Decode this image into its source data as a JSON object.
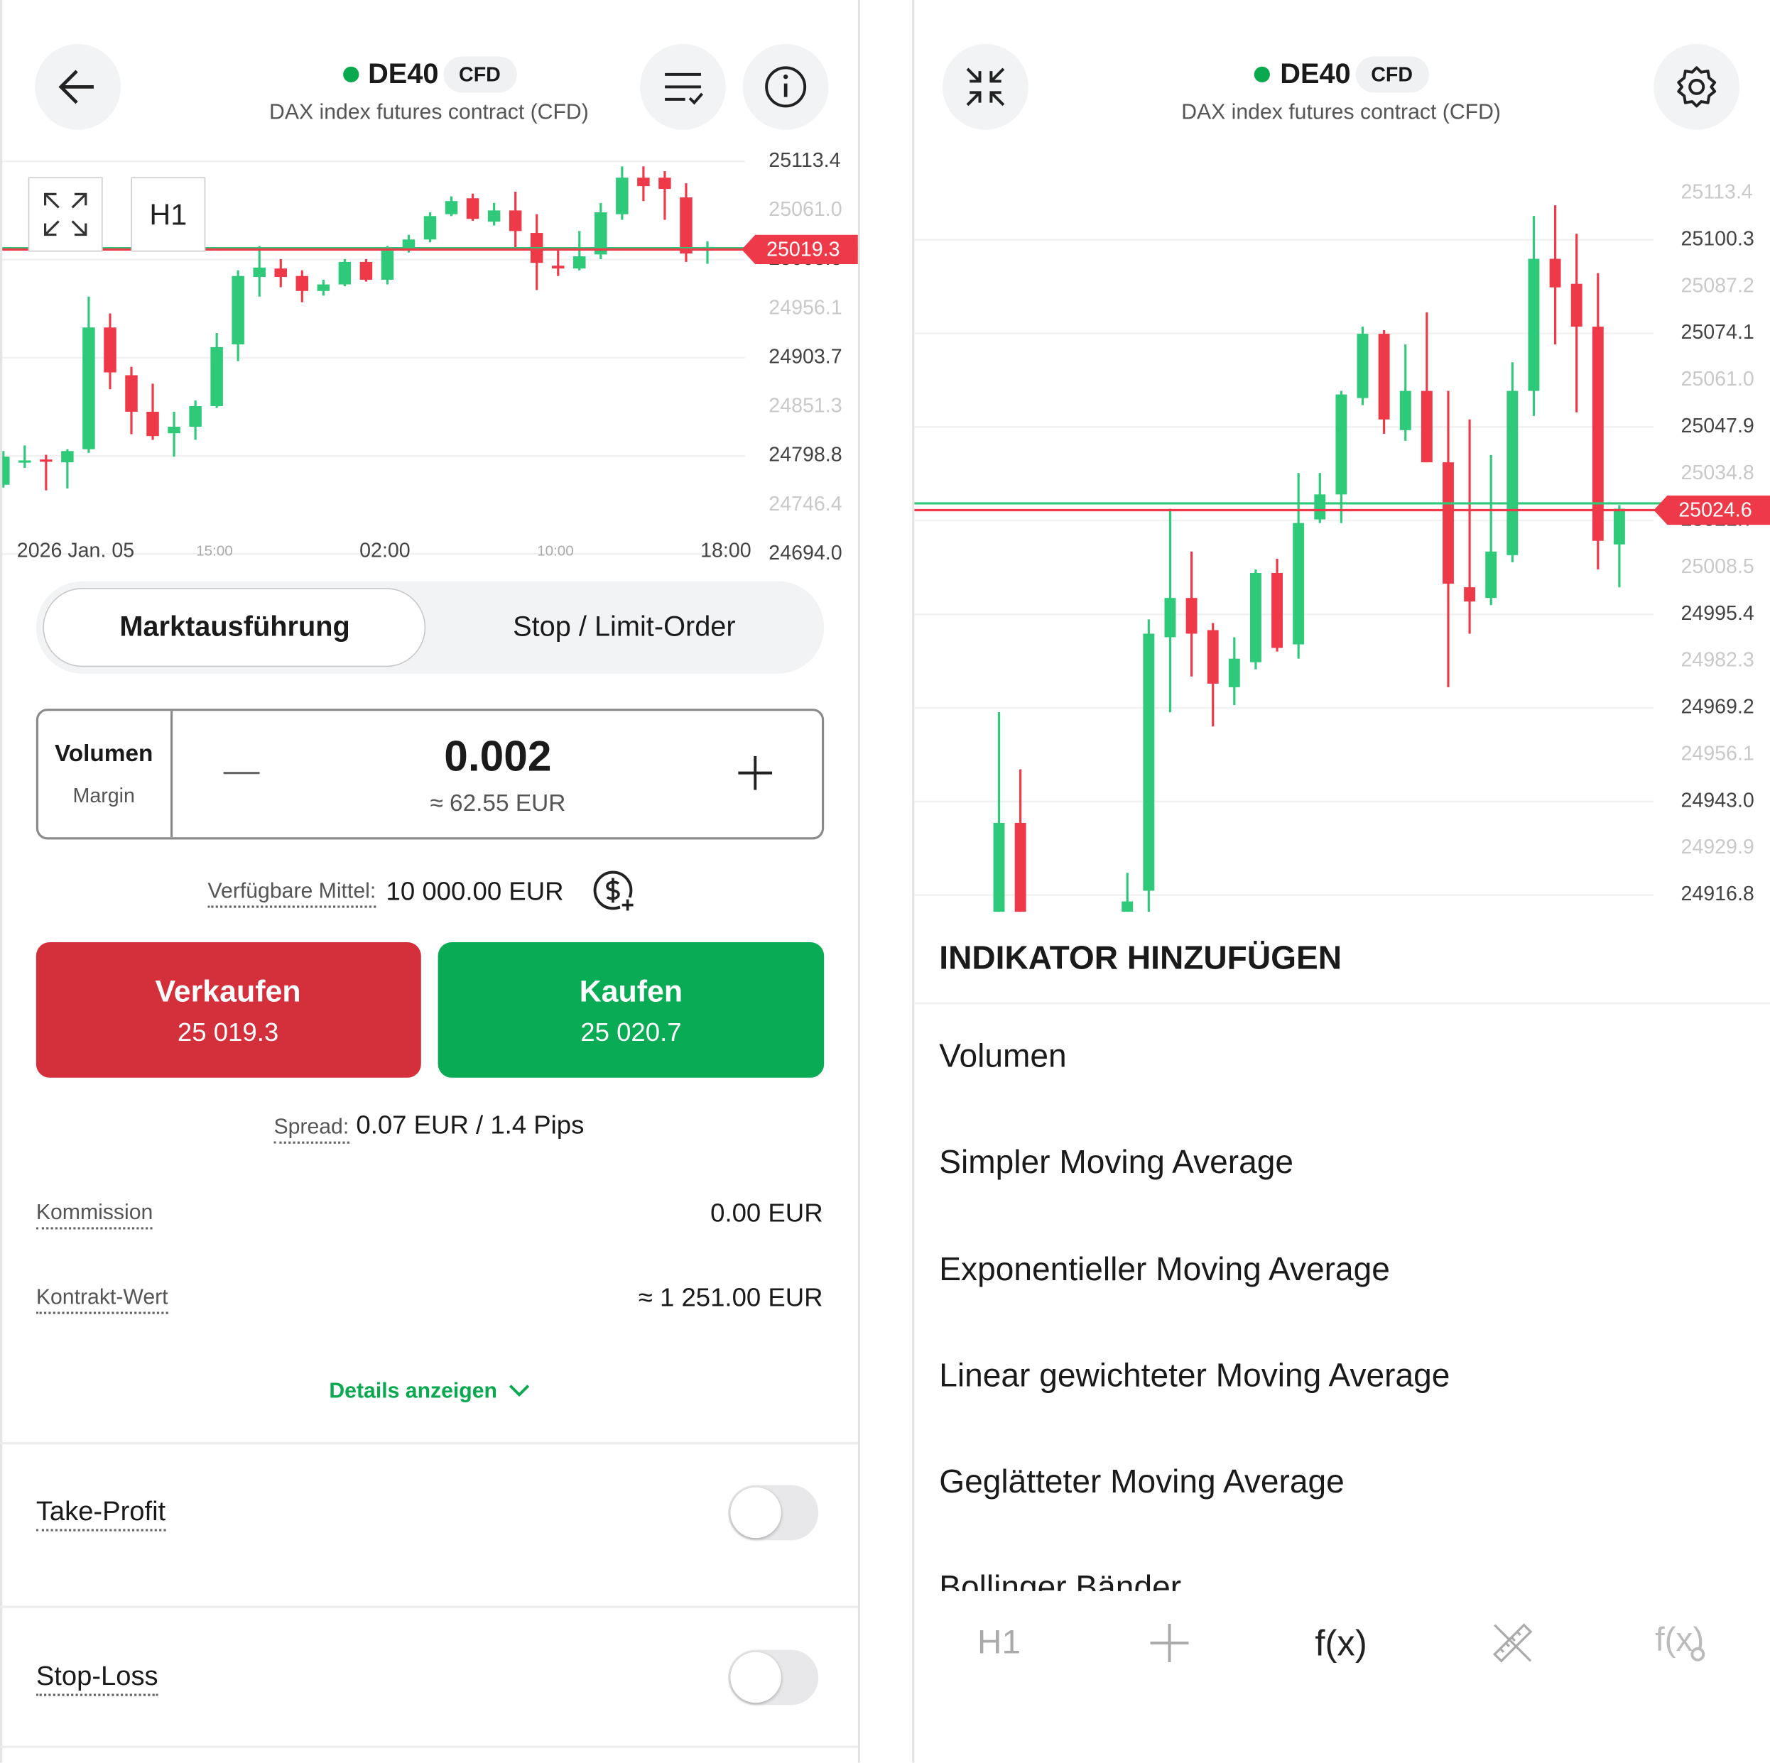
{
  "left_panel": {
    "header": {
      "symbol": "DE40",
      "badge": "CFD",
      "subtitle": "DAX index futures contract (CFD)"
    },
    "chart": {
      "type": "candlestick",
      "timeframe": "H1",
      "up_color": "#2fc97a",
      "down_color": "#ee3a48",
      "ylim": [
        24677.1,
        25129.1
      ],
      "yticks": [
        25113.4,
        {
          "value": 25061,
          "label": "25061.0"
        },
        25008.5,
        24956.1,
        24903.7,
        24851.3,
        24798.8,
        24746.4,
        {
          "value": 24694,
          "label": "24694.0"
        }
      ],
      "x_labels": [
        "2026 Jan. 05",
        "15:00",
        "02:00",
        "10:00",
        "18:00"
      ],
      "bid": 25019.3,
      "ask": 25020.7,
      "candles": [
        {
          "open": 24768,
          "high": 24804,
          "low": 24765,
          "close": 24798
        },
        {
          "open": 24792,
          "high": 24810,
          "low": 24786,
          "close": 24794
        },
        {
          "open": 24795,
          "high": 24800,
          "low": 24762,
          "close": 24793
        },
        {
          "open": 24792,
          "high": 24806,
          "low": 24764,
          "close": 24804
        },
        {
          "open": 24806,
          "high": 24969,
          "low": 24802,
          "close": 24936
        },
        {
          "open": 24936,
          "high": 24951,
          "low": 24870,
          "close": 24888
        },
        {
          "open": 24885,
          "high": 24894,
          "low": 24822,
          "close": 24846
        },
        {
          "open": 24846,
          "high": 24876,
          "low": 24816,
          "close": 24820
        },
        {
          "open": 24823,
          "high": 24846,
          "low": 24798,
          "close": 24830
        },
        {
          "open": 24830,
          "high": 24858,
          "low": 24816,
          "close": 24852
        },
        {
          "open": 24852,
          "high": 24930,
          "low": 24850,
          "close": 24915
        },
        {
          "open": 24918,
          "high": 24997,
          "low": 24900,
          "close": 24991
        },
        {
          "open": 24990,
          "high": 25023,
          "low": 24969,
          "close": 25000
        },
        {
          "open": 24999,
          "high": 25009,
          "low": 24979,
          "close": 24990
        },
        {
          "open": 24991,
          "high": 24997,
          "low": 24963,
          "close": 24975
        },
        {
          "open": 24975,
          "high": 24987,
          "low": 24970,
          "close": 24982
        },
        {
          "open": 24982,
          "high": 25009,
          "low": 24980,
          "close": 25006
        },
        {
          "open": 25006,
          "high": 25009,
          "low": 24985,
          "close": 24987
        },
        {
          "open": 24987,
          "high": 25023,
          "low": 24982,
          "close": 25018
        },
        {
          "open": 25021,
          "high": 25035,
          "low": 25016,
          "close": 25030
        },
        {
          "open": 25030,
          "high": 25059,
          "low": 25027,
          "close": 25055
        },
        {
          "open": 25057,
          "high": 25076,
          "low": 25055,
          "close": 25071
        },
        {
          "open": 25074,
          "high": 25079,
          "low": 25050,
          "close": 25052
        },
        {
          "open": 25049,
          "high": 25069,
          "low": 25045,
          "close": 25061
        },
        {
          "open": 25061,
          "high": 25081,
          "low": 25021,
          "close": 25039
        },
        {
          "open": 25037,
          "high": 25057,
          "low": 24976,
          "close": 25005
        },
        {
          "open": 25002,
          "high": 25018,
          "low": 24991,
          "close": 24999
        },
        {
          "open": 24999,
          "high": 25039,
          "low": 24997,
          "close": 25012
        },
        {
          "open": 25014,
          "high": 25069,
          "low": 25009,
          "close": 25059
        },
        {
          "open": 25057,
          "high": 25108,
          "low": 25051,
          "close": 25096
        },
        {
          "open": 25096,
          "high": 25108,
          "low": 25071,
          "close": 25087
        },
        {
          "open": 25096,
          "high": 25103,
          "low": 25051,
          "close": 25084
        },
        {
          "open": 25075,
          "high": 25090,
          "low": 25006,
          "close": 25015
        },
        {
          "open": 25018,
          "high": 25028,
          "low": 25004,
          "close": 25022
        }
      ]
    },
    "order_tabs": [
      "Marktausführung",
      "Stop / Limit-Order"
    ],
    "volume": {
      "label": "Volumen",
      "sublabel": "Margin",
      "value": "0.002",
      "margin": "≈ 62.55 EUR"
    },
    "available": {
      "label": "Verfügbare Mittel:",
      "value": "10 000.00 EUR"
    },
    "sell": {
      "label": "Verkaufen",
      "price": "25 019.3"
    },
    "buy": {
      "label": "Kaufen",
      "price": "25 020.7"
    },
    "spread": {
      "label": "Spread:",
      "value": "0.07 EUR / 1.4 Pips"
    },
    "rows": [
      {
        "label": "Kommission",
        "value": "0.00 EUR"
      },
      {
        "label": "Kontrakt-Wert",
        "value": "≈ 1 251.00 EUR"
      }
    ],
    "details_link": "Details anzeigen",
    "toggles": [
      "Take-Profit",
      "Stop-Loss"
    ]
  },
  "right_panel": {
    "header": {
      "symbol": "DE40",
      "badge": "CFD",
      "subtitle": "DAX index futures contract (CFD)"
    },
    "chart": {
      "type": "candlestick",
      "up_color": "#2fc97a",
      "down_color": "#ee3a48",
      "ylim": [
        24912.1,
        25126.4
      ],
      "yticks": [
        25113.4,
        25100.3,
        25087.2,
        25074.1,
        {
          "value": 25061,
          "label": "25061.0"
        },
        25047.9,
        25034.8,
        25021.7,
        25008.5,
        24995.4,
        24982.3,
        24969.2,
        24956.1,
        {
          "value": 24943,
          "label": "24943.0"
        },
        24929.9,
        24916.8
      ],
      "bid": 25024.6,
      "ask": 25026.5,
      "candles": [
        {
          "open": 24908,
          "high": 24968,
          "low": 24905,
          "close": 24937
        },
        {
          "open": 24937,
          "high": 24952,
          "low": 24905,
          "close": 24907
        },
        null,
        null,
        null,
        null,
        {
          "open": 24912,
          "high": 24923,
          "low": 24905,
          "close": 24915
        },
        {
          "open": 24918,
          "high": 24994,
          "low": 24910,
          "close": 24990
        },
        {
          "open": 24989,
          "high": 25025,
          "low": 24968,
          "close": 25000
        },
        {
          "open": 25000,
          "high": 25013,
          "low": 24978,
          "close": 24990
        },
        {
          "open": 24991,
          "high": 24993,
          "low": 24964,
          "close": 24976
        },
        {
          "open": 24975,
          "high": 24989,
          "low": 24970,
          "close": 24983
        },
        {
          "open": 24982,
          "high": 25008,
          "low": 24980,
          "close": 25007
        },
        {
          "open": 25007,
          "high": 25011,
          "low": 24985,
          "close": 24986
        },
        {
          "open": 24987,
          "high": 25035,
          "low": 24983,
          "close": 25021
        },
        {
          "open": 25022,
          "high": 25035,
          "low": 25021,
          "close": 25029
        },
        {
          "open": 25029,
          "high": 25058,
          "low": 25021,
          "close": 25057
        },
        {
          "open": 25056,
          "high": 25076,
          "low": 25054,
          "close": 25074
        },
        {
          "open": 25074,
          "high": 25075,
          "low": 25046,
          "close": 25050
        },
        {
          "open": 25047,
          "high": 25071,
          "low": 25044,
          "close": 25058
        },
        {
          "open": 25058,
          "high": 25080,
          "low": 25038,
          "close": 25038
        },
        {
          "open": 25038,
          "high": 25058,
          "low": 24975,
          "close": 25004
        },
        {
          "open": 25003,
          "high": 25050,
          "low": 24990,
          "close": 24999
        },
        {
          "open": 25000,
          "high": 25040,
          "low": 24998,
          "close": 25013
        },
        {
          "open": 25012,
          "high": 25066,
          "low": 25010,
          "close": 25058
        },
        {
          "open": 25058,
          "high": 25107,
          "low": 25051,
          "close": 25095
        },
        {
          "open": 25095,
          "high": 25110,
          "low": 25071,
          "close": 25087
        },
        {
          "open": 25088,
          "high": 25102,
          "low": 25052,
          "close": 25076
        },
        {
          "open": 25076,
          "high": 25091,
          "low": 25008,
          "close": 25016
        },
        {
          "open": 25015,
          "high": 25026,
          "low": 25003,
          "close": 25025
        }
      ]
    },
    "indicator_menu": {
      "title": "INDIKATOR HINZUFÜGEN",
      "items": [
        "Volumen",
        "Simpler Moving Average",
        "Exponentieller Moving Average",
        "Linear gewichteter Moving Average",
        "Geglätteter Moving Average",
        "Bollinger Bänder"
      ]
    },
    "toolbar": [
      "H1",
      "f(x)",
      "f(x)"
    ]
  }
}
